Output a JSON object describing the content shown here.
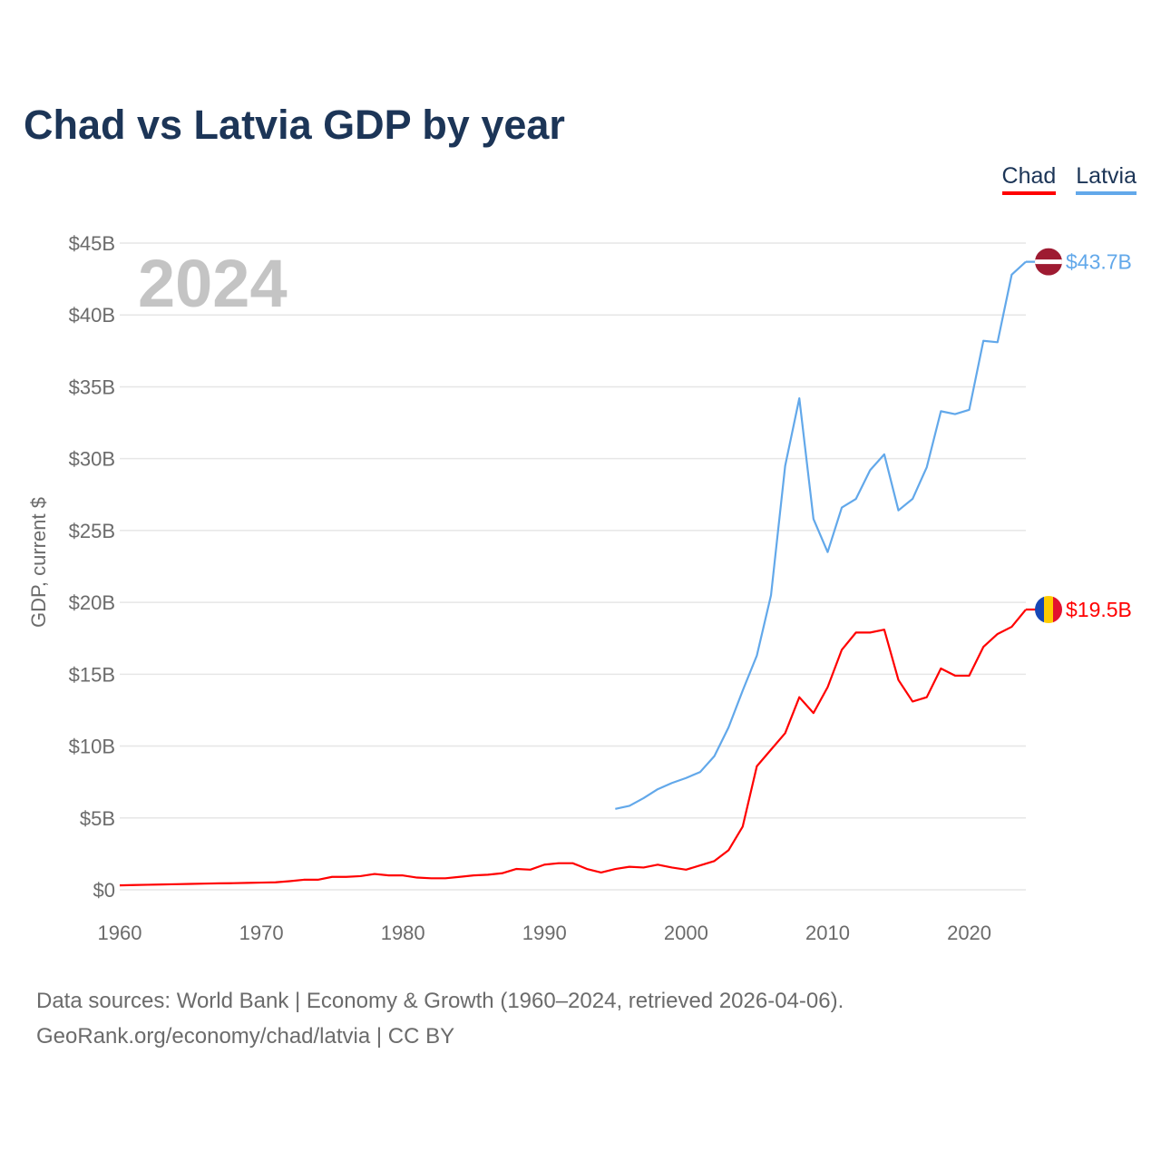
{
  "title": "Chad vs Latvia GDP by year",
  "year_label": "2024",
  "source_line1": "Data sources: World Bank | Economy & Growth (1960–2024, retrieved 2026-04-06).",
  "source_line2": "GeoRank.org/economy/chad/latvia | CC BY",
  "chart_data": {
    "type": "line",
    "title": "Chad vs Latvia GDP by year",
    "xlabel": "",
    "ylabel": "GDP, current $",
    "xlim": [
      1960,
      2024
    ],
    "ylim": [
      0,
      45
    ],
    "y_unit": "billion USD",
    "xticks": [
      1960,
      1970,
      1980,
      1990,
      2000,
      2010,
      2020
    ],
    "xtick_labels": [
      "1960",
      "1970",
      "1980",
      "1990",
      "2000",
      "2010",
      "2020"
    ],
    "yticks": [
      0,
      5,
      10,
      15,
      20,
      25,
      30,
      35,
      40,
      45
    ],
    "ytick_labels": [
      "$0",
      "$5B",
      "$10B",
      "$15B",
      "$20B",
      "$25B",
      "$30B",
      "$35B",
      "$40B",
      "$45B"
    ],
    "grid": true,
    "legend_position": "top-right",
    "series": [
      {
        "name": "Chad",
        "color": "#ff0000",
        "start_year": 1960,
        "end_label": "$19.5B",
        "values": [
          0.31,
          0.33,
          0.35,
          0.37,
          0.39,
          0.41,
          0.43,
          0.45,
          0.46,
          0.48,
          0.5,
          0.52,
          0.6,
          0.7,
          0.7,
          0.9,
          0.9,
          0.95,
          1.1,
          1.0,
          1.0,
          0.85,
          0.8,
          0.8,
          0.9,
          1.0,
          1.05,
          1.15,
          1.45,
          1.4,
          1.75,
          1.85,
          1.85,
          1.45,
          1.2,
          1.45,
          1.6,
          1.55,
          1.75,
          1.55,
          1.4,
          1.7,
          2.0,
          2.75,
          4.4,
          8.6,
          9.75,
          10.9,
          13.4,
          12.3,
          14.1,
          16.7,
          17.9,
          17.9,
          18.1,
          14.6,
          13.1,
          13.4,
          15.4,
          14.9,
          14.9,
          16.9,
          17.8,
          18.3,
          19.5
        ]
      },
      {
        "name": "Latvia",
        "color": "#62a8ea",
        "start_year": 1995,
        "end_label": "$43.7B",
        "values": [
          5.63,
          5.84,
          6.38,
          7.0,
          7.43,
          7.78,
          8.2,
          9.3,
          11.3,
          13.86,
          16.3,
          20.5,
          29.5,
          34.2,
          25.8,
          23.5,
          26.6,
          27.2,
          29.2,
          30.3,
          26.4,
          27.2,
          29.4,
          33.3,
          33.1,
          33.4,
          38.2,
          38.1,
          42.8,
          43.7
        ]
      }
    ]
  }
}
